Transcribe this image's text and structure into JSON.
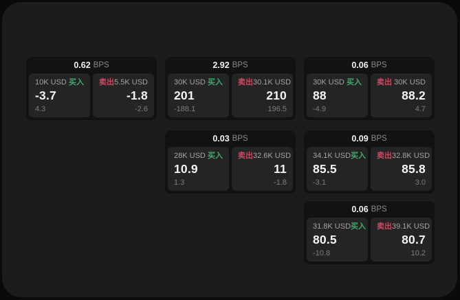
{
  "labels": {
    "bps_unit": "BPS",
    "buy": "买入",
    "sell": "卖出"
  },
  "colors": {
    "page_bg": "#0a0a0a",
    "panel_bg": "#1c1c1c",
    "card_bg": "#121212",
    "tile_bg": "#242424",
    "buy_accent": "#3fa96c",
    "sell_accent": "#ca4a63"
  },
  "layout": {
    "col_lefts": [
      38,
      240,
      442
    ],
    "row_tops": [
      83,
      190,
      293
    ]
  },
  "cards": [
    {
      "col": 0,
      "row": 0,
      "bps": "0.62",
      "buy": {
        "size": "10K USD",
        "value": "-3.7",
        "delta": "4.3"
      },
      "sell": {
        "size": "5.5K USD",
        "value": "-1.8",
        "delta": "-2.6"
      }
    },
    {
      "col": 1,
      "row": 0,
      "bps": "2.92",
      "buy": {
        "size": "30K USD",
        "value": "201",
        "delta": "-188.1"
      },
      "sell": {
        "size": "30.1K USD",
        "value": "210",
        "delta": "196.5"
      }
    },
    {
      "col": 2,
      "row": 0,
      "bps": "0.06",
      "buy": {
        "size": "30K USD",
        "value": "88",
        "delta": "-4.9"
      },
      "sell": {
        "size": "30K USD",
        "value": "88.2",
        "delta": "4.7"
      }
    },
    {
      "col": 1,
      "row": 1,
      "bps": "0.03",
      "buy": {
        "size": "28K USD",
        "value": "10.9",
        "delta": "1.3"
      },
      "sell": {
        "size": "32.6K USD",
        "value": "11",
        "delta": "-1.8"
      }
    },
    {
      "col": 2,
      "row": 1,
      "bps": "0.09",
      "buy": {
        "size": "34.1K USD",
        "value": "85.5",
        "delta": "-3.1"
      },
      "sell": {
        "size": "32.8K USD",
        "value": "85.8",
        "delta": "3.0"
      }
    },
    {
      "col": 2,
      "row": 2,
      "bps": "0.06",
      "buy": {
        "size": "31.8K USD",
        "value": "80.5",
        "delta": "-10.8"
      },
      "sell": {
        "size": "39.1K USD",
        "value": "80.7",
        "delta": "10.2"
      }
    }
  ]
}
